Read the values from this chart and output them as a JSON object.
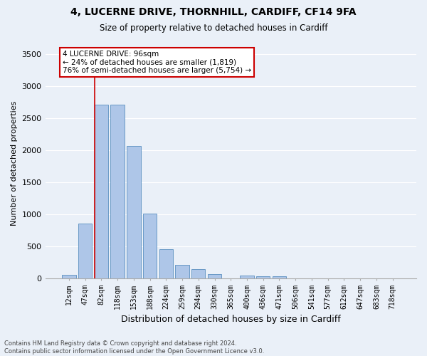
{
  "title_line1": "4, LUCERNE DRIVE, THORNHILL, CARDIFF, CF14 9FA",
  "title_line2": "Size of property relative to detached houses in Cardiff",
  "xlabel": "Distribution of detached houses by size in Cardiff",
  "ylabel": "Number of detached properties",
  "categories": [
    "12sqm",
    "47sqm",
    "82sqm",
    "118sqm",
    "153sqm",
    "188sqm",
    "224sqm",
    "259sqm",
    "294sqm",
    "330sqm",
    "365sqm",
    "400sqm",
    "436sqm",
    "471sqm",
    "506sqm",
    "541sqm",
    "577sqm",
    "612sqm",
    "647sqm",
    "683sqm",
    "718sqm"
  ],
  "values": [
    55,
    850,
    2720,
    2720,
    2070,
    1010,
    455,
    205,
    140,
    60,
    0,
    45,
    35,
    30,
    0,
    0,
    0,
    0,
    0,
    0,
    0
  ],
  "bar_color": "#aec6e8",
  "bar_edge_color": "#5a8fc0",
  "background_color": "#eaf0f8",
  "grid_color": "#ffffff",
  "vline_color": "#cc0000",
  "vline_xindex": 2,
  "annotation_text": "4 LUCERNE DRIVE: 96sqm\n← 24% of detached houses are smaller (1,819)\n76% of semi-detached houses are larger (5,754) →",
  "annotation_box_color": "#ffffff",
  "annotation_box_edge": "#cc0000",
  "ylim": [
    0,
    3600
  ],
  "yticks": [
    0,
    500,
    1000,
    1500,
    2000,
    2500,
    3000,
    3500
  ],
  "footer_line1": "Contains HM Land Registry data © Crown copyright and database right 2024.",
  "footer_line2": "Contains public sector information licensed under the Open Government Licence v3.0."
}
